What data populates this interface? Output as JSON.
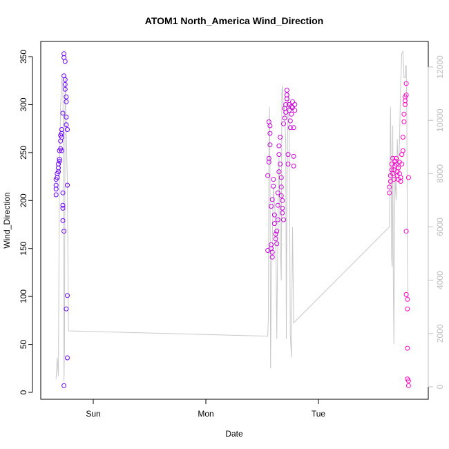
{
  "chart_data": {
    "type": "scatter",
    "title": "ATOM1 North_America Wind_Direction",
    "xlabel": "Date",
    "ylabel": "Wind_Direction",
    "x_domain_days": [
      -0.4,
      2.9
    ],
    "x_ticks": [
      {
        "label": "Sun",
        "value": 0
      },
      {
        "label": "Mon",
        "value": 1
      },
      {
        "label": "Tue",
        "value": 2
      }
    ],
    "y_left": {
      "lim": [
        0,
        350
      ],
      "ticks": [
        0,
        50,
        100,
        150,
        200,
        250,
        300,
        350
      ]
    },
    "y_right": {
      "lim": [
        0,
        12000
      ],
      "ticks": [
        0,
        2000,
        4000,
        6000,
        8000,
        10000,
        12000
      ],
      "color": "#bdbdbd"
    },
    "grid": false,
    "series": [
      {
        "kind": "points",
        "color_gradient": [
          "#6a00ff",
          "#ff00c8"
        ],
        "marker": "open-circle",
        "points": [
          [
            -0.33,
            206
          ],
          [
            -0.33,
            212
          ],
          [
            -0.33,
            216
          ],
          [
            -0.33,
            222
          ],
          [
            -0.32,
            224
          ],
          [
            -0.32,
            228
          ],
          [
            -0.31,
            230
          ],
          [
            -0.31,
            234
          ],
          [
            -0.31,
            238
          ],
          [
            -0.3,
            241
          ],
          [
            -0.3,
            243
          ],
          [
            -0.3,
            252
          ],
          [
            -0.29,
            254
          ],
          [
            -0.29,
            262
          ],
          [
            -0.29,
            268
          ],
          [
            -0.28,
            270
          ],
          [
            -0.28,
            266
          ],
          [
            -0.28,
            252
          ],
          [
            -0.28,
            274
          ],
          [
            -0.27,
            291
          ],
          [
            -0.27,
            192
          ],
          [
            -0.27,
            195
          ],
          [
            -0.27,
            208
          ],
          [
            -0.27,
            179
          ],
          [
            -0.26,
            168
          ],
          [
            -0.26,
            349
          ],
          [
            -0.26,
            353
          ],
          [
            -0.26,
            330
          ],
          [
            -0.25,
            345
          ],
          [
            -0.25,
            326
          ],
          [
            -0.25,
            321
          ],
          [
            -0.25,
            316
          ],
          [
            -0.24,
            303
          ],
          [
            -0.24,
            308
          ],
          [
            -0.24,
            287
          ],
          [
            -0.24,
            279
          ],
          [
            -0.23,
            274
          ],
          [
            -0.23,
            216
          ],
          [
            -0.23,
            101
          ],
          [
            -0.24,
            87
          ],
          [
            -0.23,
            36
          ],
          [
            -0.26,
            7
          ],
          [
            1.55,
            148
          ],
          [
            1.55,
            226
          ],
          [
            1.56,
            244
          ],
          [
            1.56,
            240
          ],
          [
            1.56,
            282
          ],
          [
            1.57,
            278
          ],
          [
            1.57,
            270
          ],
          [
            1.57,
            258
          ],
          [
            1.58,
            194
          ],
          [
            1.58,
            154
          ],
          [
            1.58,
            150
          ],
          [
            1.59,
            146
          ],
          [
            1.59,
            141
          ],
          [
            1.59,
            201
          ],
          [
            1.6,
            215
          ],
          [
            1.6,
            222
          ],
          [
            1.61,
            185
          ],
          [
            1.61,
            176
          ],
          [
            1.62,
            165
          ],
          [
            1.62,
            160
          ],
          [
            1.63,
            155
          ],
          [
            1.63,
            168
          ],
          [
            1.64,
            180
          ],
          [
            1.64,
            195
          ],
          [
            1.64,
            208
          ],
          [
            1.65,
            230
          ],
          [
            1.65,
            248
          ],
          [
            1.65,
            257
          ],
          [
            1.66,
            266
          ],
          [
            1.66,
            238
          ],
          [
            1.67,
            224
          ],
          [
            1.67,
            214
          ],
          [
            1.67,
            205
          ],
          [
            1.68,
            200
          ],
          [
            1.68,
            192
          ],
          [
            1.68,
            187
          ],
          [
            1.69,
            180
          ],
          [
            1.69,
            280
          ],
          [
            1.7,
            286
          ],
          [
            1.7,
            296
          ],
          [
            1.71,
            300
          ],
          [
            1.71,
            292
          ],
          [
            1.72,
            306
          ],
          [
            1.72,
            315
          ],
          [
            1.72,
            310
          ],
          [
            1.73,
            248
          ],
          [
            1.73,
            238
          ],
          [
            1.74,
            300
          ],
          [
            1.74,
            294
          ],
          [
            1.75,
            283
          ],
          [
            1.75,
            276
          ],
          [
            1.76,
            290
          ],
          [
            1.76,
            298
          ],
          [
            1.77,
            303
          ],
          [
            1.77,
            297
          ],
          [
            1.78,
            276
          ],
          [
            1.78,
            246
          ],
          [
            1.78,
            236
          ],
          [
            1.79,
            300
          ],
          [
            1.79,
            294
          ],
          [
            2.63,
            208
          ],
          [
            2.63,
            214
          ],
          [
            2.64,
            220
          ],
          [
            2.64,
            226
          ],
          [
            2.65,
            232
          ],
          [
            2.65,
            238
          ],
          [
            2.66,
            244
          ],
          [
            2.66,
            228
          ],
          [
            2.67,
            222
          ],
          [
            2.67,
            232
          ],
          [
            2.68,
            236
          ],
          [
            2.68,
            241
          ],
          [
            2.69,
            244
          ],
          [
            2.69,
            238
          ],
          [
            2.7,
            230
          ],
          [
            2.7,
            226
          ],
          [
            2.71,
            222
          ],
          [
            2.71,
            234
          ],
          [
            2.72,
            240
          ],
          [
            2.72,
            228
          ],
          [
            2.73,
            224
          ],
          [
            2.73,
            220
          ],
          [
            2.74,
            238
          ],
          [
            2.74,
            248
          ],
          [
            2.75,
            252
          ],
          [
            2.75,
            266
          ],
          [
            2.76,
            282
          ],
          [
            2.76,
            290
          ],
          [
            2.77,
            300
          ],
          [
            2.77,
            304
          ],
          [
            2.77,
            308
          ],
          [
            2.78,
            310
          ],
          [
            2.78,
            322
          ],
          [
            2.78,
            168
          ],
          [
            2.78,
            102
          ],
          [
            2.79,
            97
          ],
          [
            2.79,
            87
          ],
          [
            2.79,
            46
          ],
          [
            2.79,
            14
          ],
          [
            2.8,
            12
          ],
          [
            2.8,
            7
          ],
          [
            2.8,
            224
          ]
        ]
      },
      {
        "kind": "line",
        "axis": "right",
        "color": "#c8c8c8",
        "points": [
          [
            -0.33,
            300
          ],
          [
            -0.32,
            1100
          ],
          [
            -0.31,
            400
          ],
          [
            -0.3,
            8000
          ],
          [
            -0.29,
            10500
          ],
          [
            -0.28,
            11600
          ],
          [
            -0.27,
            11200
          ],
          [
            -0.265,
            9000
          ],
          [
            -0.26,
            200
          ],
          [
            -0.255,
            1500
          ],
          [
            -0.25,
            11700
          ],
          [
            -0.245,
            11200
          ],
          [
            -0.24,
            9800
          ],
          [
            -0.235,
            8600
          ],
          [
            -0.23,
            7800
          ],
          [
            -0.22,
            2100
          ],
          [
            1.55,
            1900
          ],
          [
            1.555,
            2600
          ],
          [
            1.56,
            9000
          ],
          [
            1.565,
            10500
          ],
          [
            1.57,
            8000
          ],
          [
            1.575,
            700
          ],
          [
            1.58,
            3200
          ],
          [
            1.59,
            5500
          ],
          [
            1.6,
            7500
          ],
          [
            1.62,
            6200
          ],
          [
            1.63,
            1800
          ],
          [
            1.64,
            6000
          ],
          [
            1.65,
            8600
          ],
          [
            1.66,
            5500
          ],
          [
            1.67,
            4000
          ],
          [
            1.675,
            11000
          ],
          [
            1.68,
            11300
          ],
          [
            1.69,
            10400
          ],
          [
            1.7,
            10500
          ],
          [
            1.71,
            9000
          ],
          [
            1.715,
            1800
          ],
          [
            1.72,
            7000
          ],
          [
            1.73,
            11000
          ],
          [
            1.74,
            9800
          ],
          [
            1.75,
            1900
          ],
          [
            1.76,
            1100
          ],
          [
            1.77,
            6000
          ],
          [
            1.78,
            2400
          ],
          [
            2.63,
            6000
          ],
          [
            2.635,
            7500
          ],
          [
            2.64,
            10500
          ],
          [
            2.645,
            8600
          ],
          [
            2.65,
            4800
          ],
          [
            2.655,
            4500
          ],
          [
            2.66,
            9800
          ],
          [
            2.665,
            4000
          ],
          [
            2.67,
            1600
          ],
          [
            2.68,
            8000
          ],
          [
            2.69,
            7000
          ],
          [
            2.7,
            9300
          ],
          [
            2.71,
            8100
          ],
          [
            2.72,
            9200
          ],
          [
            2.73,
            11300
          ],
          [
            2.74,
            12500
          ],
          [
            2.75,
            12600
          ],
          [
            2.76,
            11600
          ],
          [
            2.77,
            11600
          ],
          [
            2.775,
            12050
          ],
          [
            2.78,
            12050
          ],
          [
            2.785,
            10000
          ],
          [
            2.79,
            4800
          ],
          [
            2.795,
            3300
          ]
        ]
      }
    ]
  }
}
